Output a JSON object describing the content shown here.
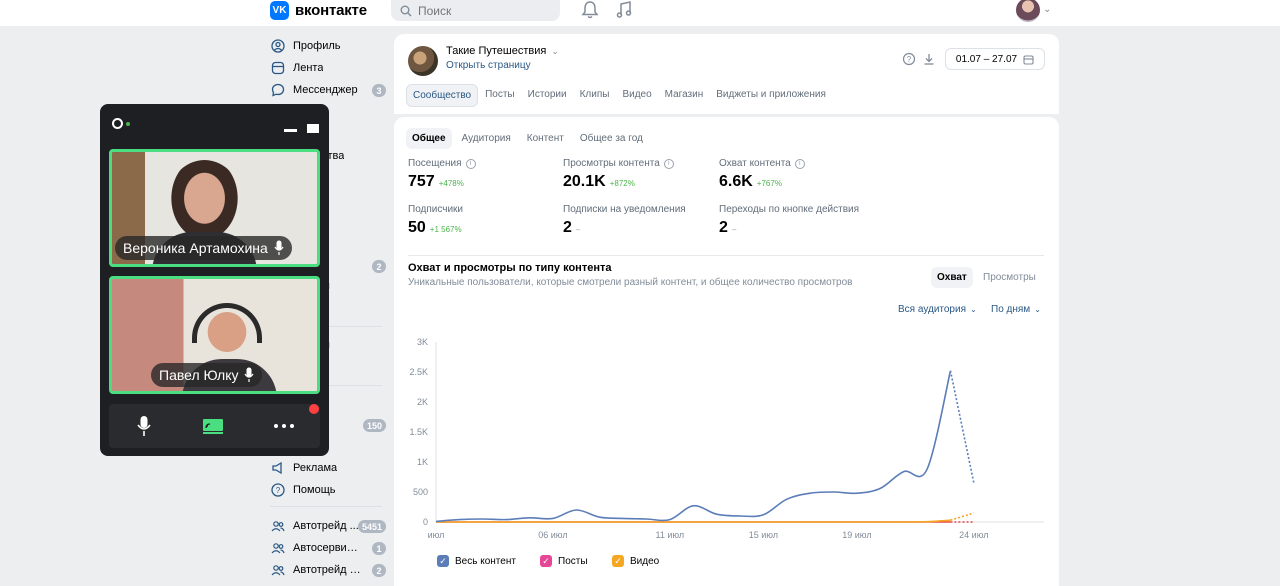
{
  "header": {
    "logo_text": "вконтакте",
    "search_placeholder": "Поиск"
  },
  "sidebar": {
    "items": [
      {
        "label": "Профиль",
        "icon": "user-icon",
        "badge": ""
      },
      {
        "label": "Лента",
        "icon": "news-icon",
        "badge": ""
      },
      {
        "label": "Мессенджер",
        "icon": "message-icon",
        "badge": "3"
      },
      {
        "label": "Реклама",
        "icon": "ads-icon",
        "badge": ""
      },
      {
        "label": "Помощь",
        "icon": "help-icon",
        "badge": ""
      },
      {
        "label": "Автотрейд ...",
        "icon": "group-icon",
        "badge": "5451"
      },
      {
        "label": "Автосервис | ...",
        "icon": "group-icon",
        "badge": "1"
      },
      {
        "label": "Автотрейд Ав...",
        "icon": "group-icon",
        "badge": "2"
      }
    ],
    "partial": {
      "item_a": "ства",
      "badge_a": "2",
      "item_b": "ы",
      "item_c": "ы",
      "badge_b": "150"
    }
  },
  "group": {
    "name": "Такие Путешествия",
    "open_link": "Открыть страницу",
    "date_range": "01.07 – 27.07"
  },
  "tabs": [
    {
      "label": "Сообщество",
      "active": true
    },
    {
      "label": "Посты",
      "active": false
    },
    {
      "label": "Истории",
      "active": false
    },
    {
      "label": "Клипы",
      "active": false
    },
    {
      "label": "Видео",
      "active": false
    },
    {
      "label": "Магазин",
      "active": false
    },
    {
      "label": "Виджеты и приложения",
      "active": false
    }
  ],
  "subtabs": [
    {
      "label": "Общее",
      "active": true
    },
    {
      "label": "Аудитория",
      "active": false
    },
    {
      "label": "Контент",
      "active": false
    },
    {
      "label": "Общее за год",
      "active": false
    }
  ],
  "stats": [
    {
      "label": "Посещения",
      "value": "757",
      "delta": "+478%",
      "info": true
    },
    {
      "label": "Просмотры контента",
      "value": "20.1K",
      "delta": "+872%",
      "info": true
    },
    {
      "label": "Охват контента",
      "value": "6.6K",
      "delta": "+767%",
      "info": true
    },
    {
      "label": "Подписчики",
      "value": "50",
      "delta": "+1 567%",
      "info": false
    },
    {
      "label": "Подписки на уведомления",
      "value": "2",
      "delta": "–",
      "info": false
    },
    {
      "label": "Переходы по кнопке действия",
      "value": "2",
      "delta": "–",
      "info": false
    }
  ],
  "section": {
    "title": "Охват и просмотры по типу контента",
    "subtitle": "Уникальные пользователи, которые смотрели разный контент, и общее количество просмотров",
    "seg_active": "Охват",
    "seg_inactive": "Просмотры",
    "audience_dropdown": "Вся аудитория",
    "period_dropdown": "По дням"
  },
  "chart_data": {
    "type": "line",
    "x": [
      1,
      2,
      3,
      4,
      5,
      6,
      7,
      8,
      9,
      10,
      11,
      12,
      13,
      14,
      15,
      16,
      17,
      18,
      19,
      20,
      21,
      22,
      23,
      24,
      25,
      26,
      27
    ],
    "x_tick_labels": [
      "июл",
      "06 июл",
      "11 июл",
      "15 июл",
      "19 июл",
      "24 июл"
    ],
    "x_tick_positions": [
      1,
      6,
      11,
      15,
      19,
      24
    ],
    "ylim": [
      0,
      3000
    ],
    "y_ticks": [
      "0",
      "500",
      "1K",
      "1.5K",
      "2K",
      "2.5K",
      "3K"
    ],
    "grid": false,
    "legend_position": "bottom",
    "series": [
      {
        "name": "Весь контент",
        "color": "#5b7db8",
        "values": [
          10,
          40,
          50,
          40,
          70,
          60,
          200,
          80,
          60,
          50,
          40,
          270,
          130,
          100,
          120,
          380,
          480,
          500,
          480,
          560,
          840,
          880,
          2520,
          650,
          null,
          null,
          null
        ]
      },
      {
        "name": "Посты",
        "color": "#e64646",
        "values": [
          0,
          0,
          0,
          0,
          0,
          0,
          0,
          0,
          0,
          0,
          0,
          0,
          0,
          0,
          0,
          0,
          0,
          0,
          0,
          0,
          0,
          0,
          0,
          0,
          null,
          null,
          null
        ]
      },
      {
        "name": "Видео",
        "color": "#f5a623",
        "values": [
          0,
          0,
          0,
          0,
          0,
          0,
          0,
          0,
          0,
          0,
          0,
          0,
          0,
          0,
          0,
          0,
          0,
          0,
          0,
          0,
          0,
          5,
          30,
          150,
          null,
          null,
          null
        ]
      }
    ]
  },
  "call": {
    "participants": [
      {
        "name": "Вероника Артамохина"
      },
      {
        "name": "Павел Юлку"
      }
    ]
  },
  "colors": {
    "accent": "#2a5885",
    "call_border": "#4ade80",
    "call_bg": "#1e1f22"
  }
}
